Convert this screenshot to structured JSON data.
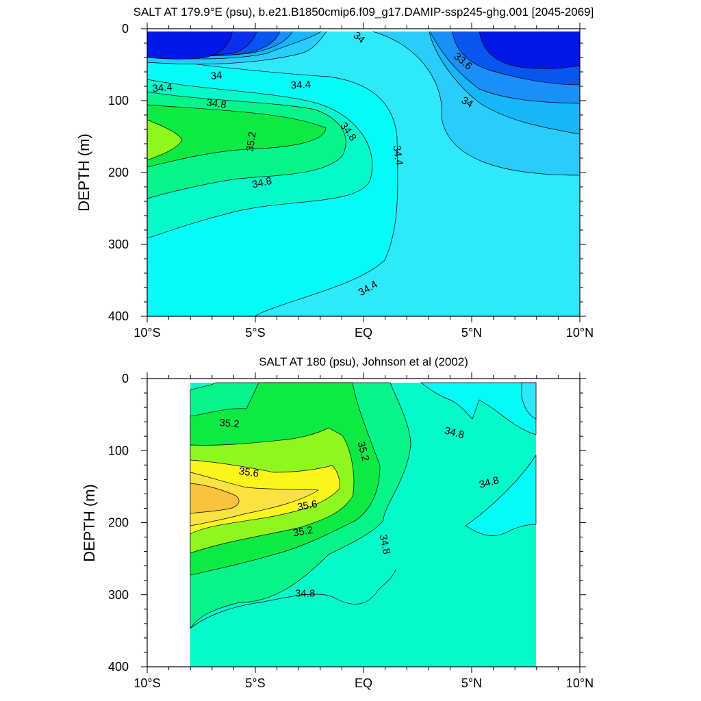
{
  "chart_data": [
    {
      "type": "contour",
      "title": "SALT AT 179.9°E (psu), b.e21.B1850cmip6.f09_g17.DAMIP-ssp245-ghg.001 [2045-2069]",
      "xlabel": "",
      "ylabel": "DEPTH (m)",
      "xlim": [
        -10,
        10
      ],
      "ylim": [
        400,
        0
      ],
      "x_ticks": [
        -10,
        -5,
        0,
        5,
        10
      ],
      "x_tick_labels": [
        "10°S",
        "5°S",
        "EQ",
        "5°N",
        "10°N"
      ],
      "y_ticks": [
        0,
        100,
        200,
        300,
        400
      ],
      "y_tick_labels": [
        "0",
        "100",
        "200",
        "300",
        "400"
      ],
      "data_extent": {
        "lat": [
          -10,
          10
        ],
        "depth": [
          5,
          400
        ]
      },
      "colors": {
        "low_core": "#0318e8",
        "33.6": "#0955f0",
        "33.8": "#1a8ff7",
        "34.0": "#17b6f8",
        "34.2": "#28cdfa",
        "34.4": "#2ee8fc",
        "34.6": "#05fbf7",
        "34.8": "#06f9c9",
        "35.0": "#05f58a",
        "35.2": "#0dea44",
        "35.4": "#8ff61e"
      },
      "contour_labels": [
        {
          "text": "34",
          "lat": -0.2,
          "depth": 12,
          "angle": 40
        },
        {
          "text": "33.6",
          "lat": 4.6,
          "depth": 45,
          "angle": 40
        },
        {
          "text": "34",
          "lat": -6.8,
          "depth": 65,
          "angle": -5
        },
        {
          "text": "34.4",
          "lat": -9.3,
          "depth": 82,
          "angle": -4
        },
        {
          "text": "34.4",
          "lat": -2.9,
          "depth": 78,
          "angle": -3
        },
        {
          "text": "34.8",
          "lat": -6.8,
          "depth": 104,
          "angle": 8
        },
        {
          "text": "34",
          "lat": 4.8,
          "depth": 102,
          "angle": 30
        },
        {
          "text": "34.8",
          "lat": -0.7,
          "depth": 143,
          "angle": 55
        },
        {
          "text": "35.2",
          "lat": -5.2,
          "depth": 157,
          "angle": -82
        },
        {
          "text": "34.4",
          "lat": 1.6,
          "depth": 176,
          "angle": 82
        },
        {
          "text": "34.8",
          "lat": -4.7,
          "depth": 214,
          "angle": -12
        },
        {
          "text": "34.4",
          "lat": 0.2,
          "depth": 361,
          "angle": -30
        }
      ]
    },
    {
      "type": "contour",
      "title": "SALT AT 180 (psu), Johnson et al (2002)",
      "xlabel": "",
      "ylabel": "DEPTH (m)",
      "xlim": [
        -10,
        10
      ],
      "ylim": [
        400,
        0
      ],
      "x_ticks": [
        -10,
        -5,
        0,
        5,
        10
      ],
      "x_tick_labels": [
        "10°S",
        "5°S",
        "EQ",
        "5°N",
        "10°N"
      ],
      "y_ticks": [
        0,
        100,
        200,
        300,
        400
      ],
      "y_tick_labels": [
        "0",
        "100",
        "200",
        "300",
        "400"
      ],
      "data_extent": {
        "lat": [
          -8,
          8
        ],
        "depth": [
          5,
          400
        ]
      },
      "colors": {
        "34.4": "#2ee8fc",
        "34.6": "#05fbf7",
        "34.8": "#06f9c9",
        "35.0": "#05f58a",
        "35.2": "#0dea44",
        "35.4": "#8ff61e",
        "35.6": "#fbf51a",
        "35.8": "#fbe243",
        "36.0": "#fbc33c"
      },
      "contour_labels": [
        {
          "text": "35.2",
          "lat": -6.2,
          "depth": 62,
          "angle": 5
        },
        {
          "text": "35.2",
          "lat": 0.0,
          "depth": 101,
          "angle": 75
        },
        {
          "text": "34.8",
          "lat": 4.2,
          "depth": 75,
          "angle": 15
        },
        {
          "text": "35.6",
          "lat": -5.3,
          "depth": 130,
          "angle": 8
        },
        {
          "text": "34.8",
          "lat": 5.8,
          "depth": 144,
          "angle": -15
        },
        {
          "text": "35.6",
          "lat": -2.6,
          "depth": 176,
          "angle": -10
        },
        {
          "text": "35.2",
          "lat": -2.8,
          "depth": 212,
          "angle": -10
        },
        {
          "text": "34.8",
          "lat": 1.0,
          "depth": 230,
          "angle": 78
        },
        {
          "text": "34.8",
          "lat": -2.7,
          "depth": 298,
          "angle": 0
        }
      ]
    }
  ]
}
